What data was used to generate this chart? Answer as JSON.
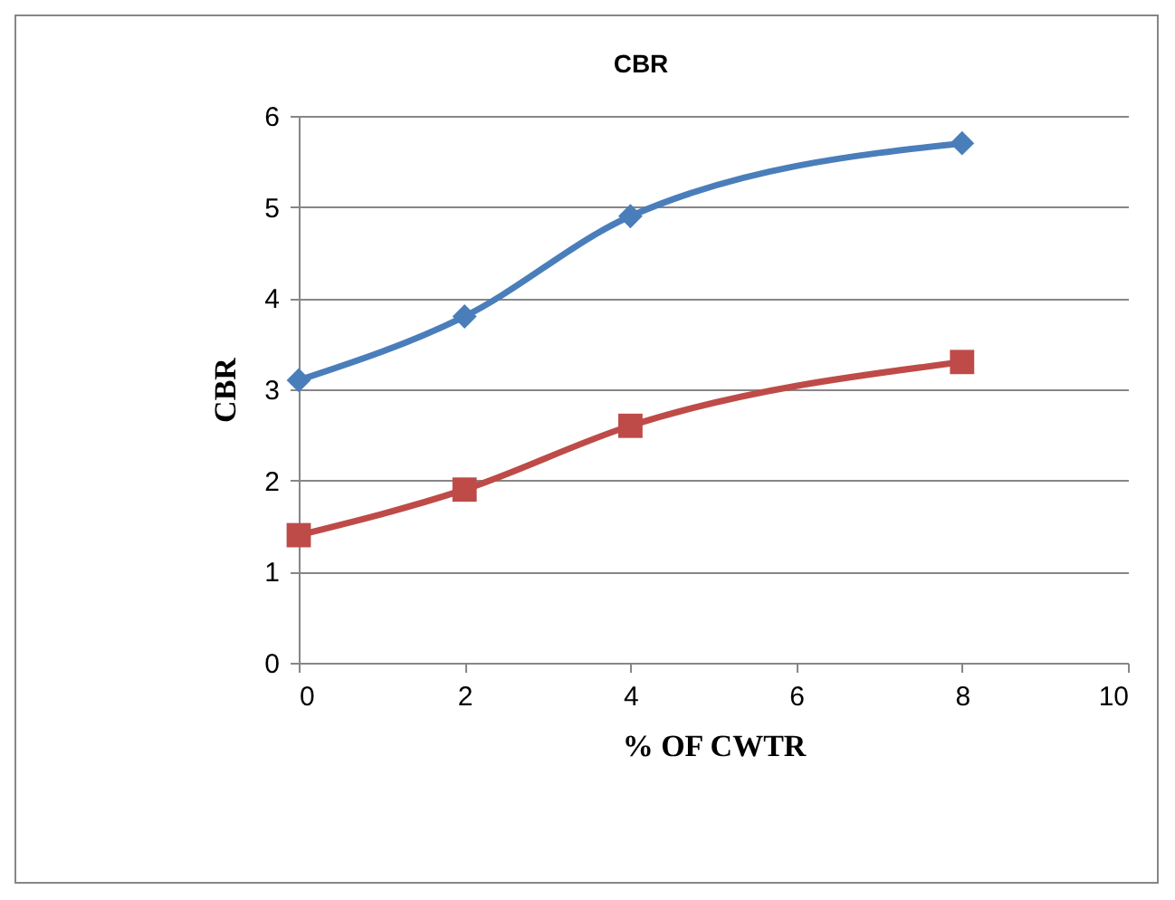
{
  "chart_data": {
    "type": "line",
    "title": "CBR",
    "xlabel": "% OF  CWTR",
    "ylabel": "CBR",
    "x": [
      0,
      2,
      4,
      8
    ],
    "series": [
      {
        "color": "#4a7ebb",
        "marker": "diamond",
        "values": [
          3.1,
          3.8,
          4.9,
          5.7
        ]
      },
      {
        "color": "#be4b48",
        "marker": "square",
        "values": [
          1.4,
          1.9,
          2.6,
          3.3
        ]
      }
    ],
    "xlim": [
      0,
      10
    ],
    "xticks": [
      0,
      2,
      4,
      6,
      8,
      10
    ],
    "ylim": [
      0,
      6
    ],
    "yticks": [
      0,
      1,
      2,
      3,
      4,
      5,
      6
    ],
    "grid": "y"
  }
}
